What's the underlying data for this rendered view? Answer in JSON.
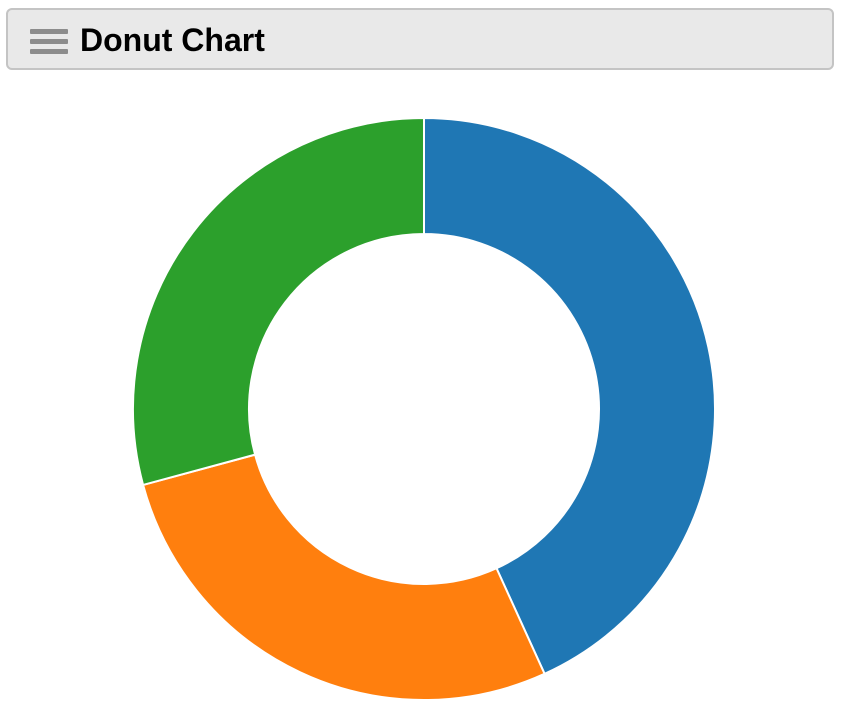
{
  "header": {
    "title": "Donut Chart",
    "menu_icon": "hamburger-menu-icon"
  },
  "colors": {
    "header_background": "#e9e9e9",
    "header_border": "#c4c4c4",
    "slice_border": "#ffffff"
  },
  "chart_data": {
    "type": "pie",
    "variant": "donut",
    "title": "",
    "legend": "none",
    "data_labels": "none",
    "slices": [
      {
        "value": 43.2,
        "color": "#1f77b4"
      },
      {
        "value": 27.6,
        "color": "#ff7f0e"
      },
      {
        "value": 29.2,
        "color": "#2ca02c"
      }
    ]
  }
}
